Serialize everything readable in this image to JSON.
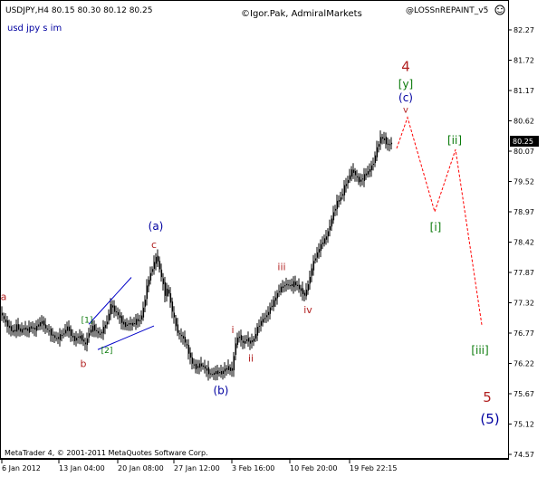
{
  "header": {
    "symbol_ohlc": "USDJPY,H4  80.15 80.30 80.12 80.25",
    "author": "©Igor.Pak, AdmiralMarkets",
    "indicator": "@LOSSnREPAINT_v5",
    "comment": "usd jpy s im",
    "footer": "MetaTrader 4, © 2001-2011 MetaQuotes Software Corp."
  },
  "colors": {
    "candle": "#000000",
    "wave_red": "#b22222",
    "wave_green": "#0a7a0a",
    "wave_blue": "#0000a0",
    "projection": "#ff0000",
    "trendline": "#0000c8",
    "price_box_bg": "#000000",
    "price_box_fg": "#ffffff"
  },
  "chart_data": {
    "type": "candlestick",
    "title": "USDJPY,H4",
    "current_price": "80.25",
    "ylim": [
      74.57,
      82.27
    ],
    "y_ticks": [
      "82.27",
      "81.72",
      "81.17",
      "80.62",
      "80.07",
      "79.52",
      "78.97",
      "78.42",
      "77.87",
      "77.32",
      "76.77",
      "76.22",
      "75.67",
      "75.12",
      "74.57"
    ],
    "x_ticks": [
      "6 Jan 2012",
      "13 Jan 04:00",
      "20 Jan 08:00",
      "27 Jan 12:00",
      "3 Feb 16:00",
      "10 Feb 20:00",
      "19 Feb 22:15"
    ],
    "price_path": [
      [
        0,
        77.15
      ],
      [
        3,
        77.05
      ],
      [
        6,
        76.96
      ],
      [
        10,
        76.87
      ],
      [
        14,
        76.78
      ],
      [
        18,
        76.9
      ],
      [
        22,
        76.8
      ],
      [
        26,
        76.86
      ],
      [
        30,
        76.82
      ],
      [
        34,
        76.88
      ],
      [
        38,
        76.84
      ],
      [
        42,
        76.92
      ],
      [
        46,
        76.98
      ],
      [
        50,
        76.86
      ],
      [
        54,
        76.8
      ],
      [
        58,
        76.72
      ],
      [
        62,
        76.66
      ],
      [
        66,
        76.72
      ],
      [
        70,
        76.77
      ],
      [
        74,
        76.88
      ],
      [
        78,
        76.74
      ],
      [
        82,
        76.64
      ],
      [
        86,
        76.72
      ],
      [
        90,
        76.66
      ],
      [
        94,
        76.56
      ],
      [
        98,
        76.78
      ],
      [
        102,
        76.88
      ],
      [
        106,
        76.8
      ],
      [
        110,
        76.74
      ],
      [
        114,
        76.86
      ],
      [
        118,
        76.98
      ],
      [
        122,
        77.28
      ],
      [
        126,
        77.18
      ],
      [
        130,
        77.1
      ],
      [
        134,
        76.98
      ],
      [
        138,
        76.9
      ],
      [
        142,
        76.95
      ],
      [
        146,
        76.92
      ],
      [
        150,
        77.0
      ],
      [
        154,
        77.0
      ],
      [
        158,
        77.2
      ],
      [
        162,
        77.62
      ],
      [
        166,
        77.85
      ],
      [
        170,
        78.05
      ],
      [
        173,
        78.18
      ],
      [
        176,
        77.92
      ],
      [
        179,
        77.72
      ],
      [
        182,
        77.48
      ],
      [
        185,
        77.58
      ],
      [
        188,
        77.32
      ],
      [
        191,
        77.1
      ],
      [
        194,
        76.9
      ],
      [
        197,
        76.74
      ],
      [
        200,
        76.72
      ],
      [
        204,
        76.62
      ],
      [
        208,
        76.42
      ],
      [
        212,
        76.22
      ],
      [
        216,
        76.14
      ],
      [
        220,
        76.2
      ],
      [
        224,
        76.16
      ],
      [
        228,
        76.1
      ],
      [
        232,
        76.02
      ],
      [
        236,
        76.04
      ],
      [
        240,
        76.07
      ],
      [
        244,
        76.04
      ],
      [
        248,
        76.12
      ],
      [
        252,
        76.13
      ],
      [
        256,
        76.1
      ],
      [
        260,
        76.6
      ],
      [
        264,
        76.72
      ],
      [
        268,
        76.58
      ],
      [
        272,
        76.66
      ],
      [
        276,
        76.6
      ],
      [
        280,
        76.66
      ],
      [
        284,
        76.86
      ],
      [
        288,
        76.98
      ],
      [
        292,
        77.05
      ],
      [
        296,
        77.15
      ],
      [
        300,
        77.28
      ],
      [
        304,
        77.42
      ],
      [
        308,
        77.55
      ],
      [
        312,
        77.62
      ],
      [
        316,
        77.66
      ],
      [
        320,
        77.62
      ],
      [
        324,
        77.68
      ],
      [
        328,
        77.62
      ],
      [
        332,
        77.55
      ],
      [
        336,
        77.45
      ],
      [
        340,
        77.65
      ],
      [
        344,
        77.95
      ],
      [
        348,
        78.15
      ],
      [
        352,
        78.3
      ],
      [
        356,
        78.42
      ],
      [
        360,
        78.52
      ],
      [
        364,
        78.72
      ],
      [
        368,
        78.95
      ],
      [
        372,
        79.15
      ],
      [
        376,
        79.22
      ],
      [
        380,
        79.42
      ],
      [
        384,
        79.55
      ],
      [
        388,
        79.72
      ],
      [
        392,
        79.65
      ],
      [
        396,
        79.52
      ],
      [
        400,
        79.58
      ],
      [
        404,
        79.66
      ],
      [
        408,
        79.74
      ],
      [
        412,
        79.86
      ],
      [
        416,
        80.12
      ],
      [
        420,
        80.32
      ],
      [
        424,
        80.28
      ],
      [
        428,
        80.18
      ],
      [
        432,
        80.22
      ]
    ],
    "wave_labels": [
      {
        "text": "a",
        "color": "red",
        "size": 11,
        "x": 4,
        "y": 77.42
      },
      {
        "text": "b",
        "color": "red",
        "size": 11,
        "x": 92,
        "y": 76.2
      },
      {
        "text": "[1]",
        "color": "green",
        "size": 9,
        "x": 96,
        "y": 77.0
      },
      {
        "text": "[2]",
        "color": "green",
        "size": 9,
        "x": 118,
        "y": 76.45
      },
      {
        "text": "(a)",
        "color": "blue",
        "size": 12,
        "x": 172,
        "y": 78.7
      },
      {
        "text": "c",
        "color": "red",
        "size": 11,
        "x": 170,
        "y": 78.36
      },
      {
        "text": "(b)",
        "color": "blue",
        "size": 12,
        "x": 244,
        "y": 75.72
      },
      {
        "text": "i",
        "color": "red",
        "size": 11,
        "x": 257,
        "y": 76.82
      },
      {
        "text": "ii",
        "color": "red",
        "size": 11,
        "x": 277,
        "y": 76.3
      },
      {
        "text": "iii",
        "color": "red",
        "size": 11,
        "x": 311,
        "y": 77.96
      },
      {
        "text": "iv",
        "color": "red",
        "size": 11,
        "x": 340,
        "y": 77.18
      },
      {
        "text": "4",
        "color": "red",
        "size": 15,
        "x": 448,
        "y": 81.6
      },
      {
        "text": "[y]",
        "color": "green",
        "size": 12,
        "x": 448,
        "y": 81.28
      },
      {
        "text": "(c)",
        "color": "blue",
        "size": 12,
        "x": 448,
        "y": 81.03
      },
      {
        "text": "v",
        "color": "red",
        "size": 10,
        "x": 448,
        "y": 80.82
      },
      {
        "text": "[ii]",
        "color": "green",
        "size": 12,
        "x": 502,
        "y": 80.26
      },
      {
        "text": "[i]",
        "color": "green",
        "size": 12,
        "x": 481,
        "y": 78.68
      },
      {
        "text": "[iii]",
        "color": "green",
        "size": 12,
        "x": 530,
        "y": 76.45
      },
      {
        "text": "5",
        "color": "red",
        "size": 15,
        "x": 538,
        "y": 75.6
      },
      {
        "text": "(5)",
        "color": "blue",
        "size": 15,
        "x": 541,
        "y": 75.2
      }
    ],
    "projection_path": [
      [
        438,
        80.12
      ],
      [
        450,
        80.68
      ],
      [
        480,
        78.97
      ],
      [
        503,
        80.1
      ],
      [
        532,
        76.92
      ]
    ],
    "trendlines": [
      [
        [
          98,
          76.93
        ],
        [
          145,
          77.78
        ]
      ],
      [
        [
          108,
          76.47
        ],
        [
          170,
          76.9
        ]
      ]
    ]
  }
}
